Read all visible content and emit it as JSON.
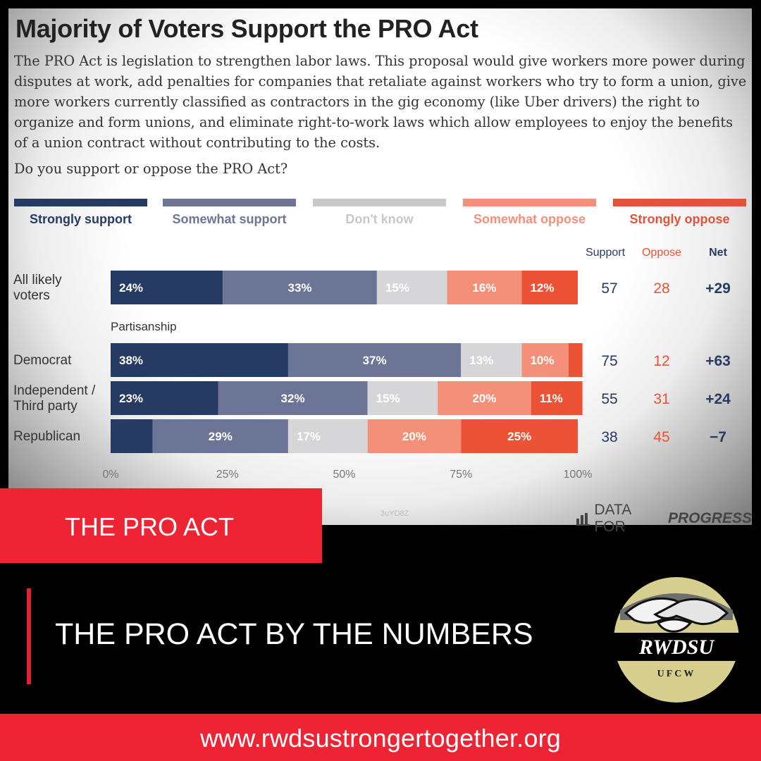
{
  "chart_data": {
    "type": "bar",
    "orientation": "horizontal",
    "stacked": true,
    "title": "Majority of Voters Support the PRO Act",
    "description": "The PRO Act is legislation to strengthen labor laws. This proposal would give workers more power during disputes at work, add penalties for companies that retaliate against workers who try to form a union, give more workers currently classified as contractors in the gig economy (like Uber drivers) the right to organize and form unions, and eliminate right-to-work laws which allow employees to enjoy the benefits of a union contract without contributing to the costs.",
    "question": "Do you support or oppose the PRO Act?",
    "legend_position": "top",
    "group_label": "Partisanship",
    "xlim": [
      0,
      100
    ],
    "x_ticks": [
      "0%",
      "25%",
      "50%",
      "75%",
      "100%"
    ],
    "categories": [
      {
        "label": "All likely voters",
        "lines": [
          "All likely",
          "voters"
        ]
      },
      {
        "label": "Democrat",
        "lines": [
          "Democrat"
        ]
      },
      {
        "label": "Independent / Third party",
        "lines": [
          "Independent /",
          "Third party"
        ]
      },
      {
        "label": "Republican",
        "lines": [
          "Republican"
        ]
      }
    ],
    "series": [
      {
        "name": "Strongly support",
        "color": "#253b64",
        "label_color": "#ffffff",
        "legend_color": "#253b64",
        "values": [
          24,
          38,
          23,
          9
        ],
        "labels": [
          "24%",
          "38%",
          "23%",
          ""
        ]
      },
      {
        "name": "Somewhat support",
        "color": "#6d7596",
        "label_color": "#ffffff",
        "legend_color": "#6d7596",
        "values": [
          33,
          37,
          32,
          29
        ],
        "labels": [
          "33%",
          "37%",
          "32%",
          "29%"
        ]
      },
      {
        "name": "Don't know",
        "color": "#d6d6d9",
        "label_color": "#ffffff",
        "legend_color": "#c8c8cc",
        "values": [
          15,
          13,
          15,
          17
        ],
        "labels": [
          "15%",
          "13%",
          "15%",
          "17%"
        ]
      },
      {
        "name": "Somewhat oppose",
        "color": "#f49079",
        "label_color": "#ffffff",
        "legend_color": "#f49079",
        "values": [
          16,
          10,
          20,
          20
        ],
        "labels": [
          "16%",
          "10%",
          "20%",
          "20%"
        ]
      },
      {
        "name": "Strongly oppose",
        "color": "#ec5336",
        "label_color": "#ffffff",
        "legend_color": "#e2543a",
        "values": [
          12,
          3,
          11,
          25
        ],
        "labels": [
          "12%",
          "",
          "11%",
          "25%"
        ]
      }
    ],
    "summary_columns": {
      "headers": [
        "Support",
        "Oppose",
        "Net"
      ],
      "header_colors": [
        "#253b64",
        "#ec5336",
        "#253b64"
      ],
      "support": [
        "57",
        "75",
        "55",
        "38"
      ],
      "oppose": [
        "28",
        "12",
        "31",
        "45"
      ],
      "net": [
        "+29",
        "+63",
        "+24",
        "−7"
      ]
    }
  },
  "watermark": "3uYD8Z",
  "source_logo": {
    "prefix": "DATA FOR",
    "emphasis": "PROGRESS"
  },
  "banner": {
    "label": "THE PRO ACT"
  },
  "headline": "THE PRO ACT BY THE NUMBERS",
  "org_logo": {
    "name": "RWDSU",
    "sub": "UFCW",
    "icon": "handshake-icon"
  },
  "footer": {
    "url": "www.rwdsustrongertogether.org"
  },
  "colors": {
    "brand_red": "#ee2434",
    "background": "#000000"
  }
}
